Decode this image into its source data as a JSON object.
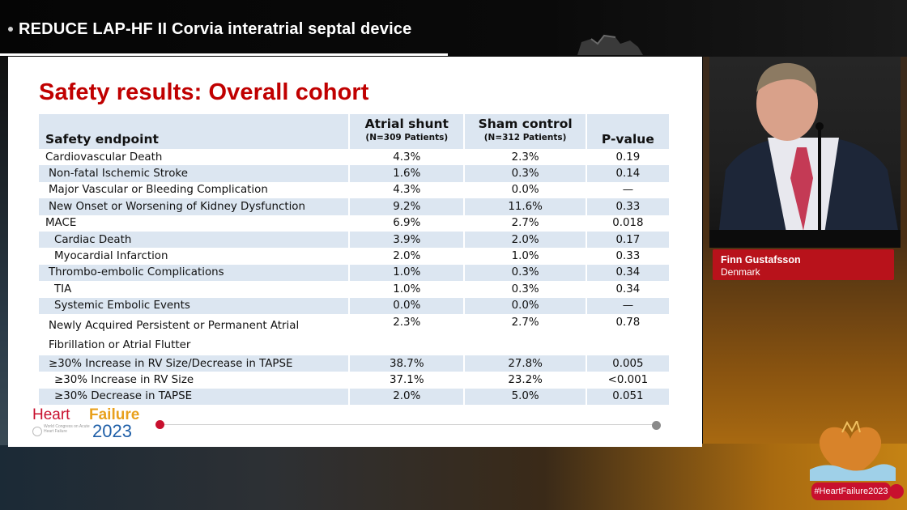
{
  "video": {
    "title": "REDUCE LAP-HF II Corvia interatrial septal device"
  },
  "slide": {
    "title": "Safety results: Overall cohort",
    "table": {
      "headers": {
        "endpoint": "Safety endpoint",
        "atrial": "Atrial shunt",
        "atrial_n": "(N=309 Patients)",
        "sham": "Sham control",
        "sham_n": "(N=312 Patients)",
        "pvalue": "P-value"
      },
      "rows": [
        {
          "endpoint": "Cardiovascular Death",
          "atrial": "4.3%",
          "sham": "2.3%",
          "p": "0.19"
        },
        {
          "endpoint": "Non-fatal Ischemic Stroke",
          "atrial": "1.6%",
          "sham": "0.3%",
          "p": "0.14"
        },
        {
          "endpoint": "Major Vascular or Bleeding Complication",
          "atrial": "4.3%",
          "sham": "0.0%",
          "p": "—"
        },
        {
          "endpoint": "New Onset or Worsening of Kidney Dysfunction",
          "atrial": "9.2%",
          "sham": "11.6%",
          "p": "0.33"
        },
        {
          "endpoint": "MACE",
          "atrial": "6.9%",
          "sham": "2.7%",
          "p": "0.018"
        },
        {
          "endpoint": "Cardiac Death",
          "atrial": "3.9%",
          "sham": "2.0%",
          "p": "0.17"
        },
        {
          "endpoint": "Myocardial Infarction",
          "atrial": "2.0%",
          "sham": "1.0%",
          "p": "0.33"
        },
        {
          "endpoint": "Thrombo-embolic Complications",
          "atrial": "1.0%",
          "sham": "0.3%",
          "p": "0.34"
        },
        {
          "endpoint": "TIA",
          "atrial": "1.0%",
          "sham": "0.3%",
          "p": "0.34"
        },
        {
          "endpoint": "Systemic Embolic Events",
          "atrial": "0.0%",
          "sham": "0.0%",
          "p": "—"
        },
        {
          "endpoint": "Newly Acquired Persistent or Permanent Atrial Fibrillation or Atrial Flutter",
          "atrial": "2.3%",
          "sham": "2.7%",
          "p": "0.78"
        },
        {
          "endpoint": "≥30% Increase in RV Size/Decrease in TAPSE",
          "atrial": "38.7%",
          "sham": "27.8%",
          "p": "0.005"
        },
        {
          "endpoint": "≥30% Increase in RV Size",
          "atrial": "37.1%",
          "sham": "23.2%",
          "p": "<0.001"
        },
        {
          "endpoint": "≥30% Decrease in TAPSE",
          "atrial": "2.0%",
          "sham": "5.0%",
          "p": "0.051"
        }
      ]
    },
    "logo": {
      "word1": "Heart",
      "word2": "Failure",
      "year": "2023",
      "tagline": "World Congress on Acute Heart Failure"
    }
  },
  "speaker": {
    "name": "Finn Gustafsson",
    "country": "Denmark"
  },
  "event": {
    "hashtag": "#HeartFailure2023"
  },
  "colors": {
    "title_red": "#c00000",
    "table_band": "#dce6f1",
    "name_plate": "#b8121b"
  }
}
